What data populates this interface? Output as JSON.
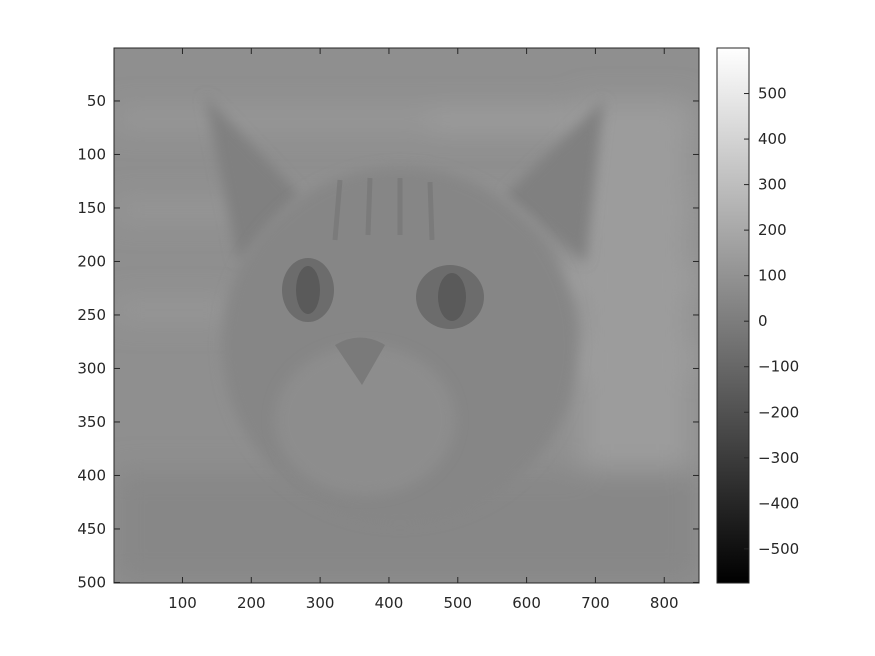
{
  "chart_data": {
    "type": "heatmap",
    "colormap": "gray",
    "image_subject": "cat face close-up (grayscale intensity image)",
    "x_ticks": [
      100,
      200,
      300,
      400,
      500,
      600,
      700,
      800
    ],
    "y_ticks": [
      50,
      100,
      150,
      200,
      250,
      300,
      350,
      400,
      450,
      500
    ],
    "x_range": [
      0.5,
      850.5
    ],
    "y_range": [
      0.5,
      500.5
    ],
    "y_direction": "reverse",
    "colorbar": {
      "ticks": [
        500,
        400,
        300,
        200,
        100,
        0,
        -100,
        -200,
        -300,
        -400,
        -500
      ],
      "tick_labels": [
        "500",
        "400",
        "300",
        "200",
        "100",
        "0",
        "−100",
        "−200",
        "−300",
        "−400",
        "−500"
      ],
      "range": [
        -575,
        600
      ]
    },
    "colors": {
      "axis": "#262626",
      "background": "#ffffff"
    }
  }
}
